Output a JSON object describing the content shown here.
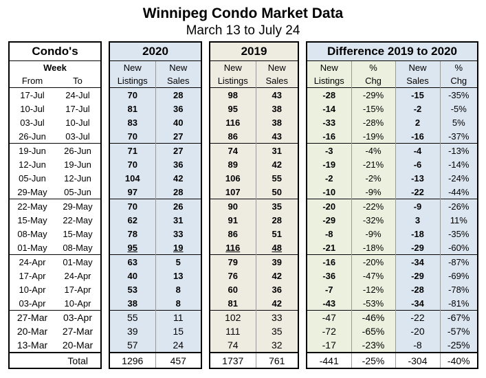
{
  "title": "Winnipeg Condo Market Data",
  "subtitle": "March 13 to July 24",
  "headers": {
    "condos": "Condo's",
    "y2020": "2020",
    "y2019": "2019",
    "diff": "Difference 2019 to 2020",
    "week": "Week",
    "from": "From",
    "to": "To",
    "new1": "New",
    "listings": "Listings",
    "new2": "New",
    "sales": "Sales",
    "pct": "%",
    "chg": "Chg"
  },
  "rows": [
    {
      "from": "17-Jul",
      "to": "24-Jul",
      "l20": "70",
      "s20": "28",
      "l19": "98",
      "s19": "43",
      "dl": "-28",
      "pl": "-29%",
      "ds": "-15",
      "ps": "-35%"
    },
    {
      "from": "10-Jul",
      "to": "17-Jul",
      "l20": "81",
      "s20": "36",
      "l19": "95",
      "s19": "38",
      "dl": "-14",
      "pl": "-15%",
      "ds": "-2",
      "ps": "-5%"
    },
    {
      "from": "03-Jul",
      "to": "10-Jul",
      "l20": "83",
      "s20": "40",
      "l19": "116",
      "s19": "38",
      "dl": "-33",
      "pl": "-28%",
      "ds": "2",
      "ps": "5%"
    },
    {
      "from": "26-Jun",
      "to": "03-Jul",
      "l20": "70",
      "s20": "27",
      "l19": "86",
      "s19": "43",
      "dl": "-16",
      "pl": "-19%",
      "ds": "-16",
      "ps": "-37%"
    },
    {
      "from": "19-Jun",
      "to": "26-Jun",
      "l20": "71",
      "s20": "27",
      "l19": "74",
      "s19": "31",
      "dl": "-3",
      "pl": "-4%",
      "ds": "-4",
      "ps": "-13%"
    },
    {
      "from": "12-Jun",
      "to": "19-Jun",
      "l20": "70",
      "s20": "36",
      "l19": "89",
      "s19": "42",
      "dl": "-19",
      "pl": "-21%",
      "ds": "-6",
      "ps": "-14%"
    },
    {
      "from": "05-Jun",
      "to": "12-Jun",
      "l20": "104",
      "s20": "42",
      "l19": "106",
      "s19": "55",
      "dl": "-2",
      "pl": "-2%",
      "ds": "-13",
      "ps": "-24%"
    },
    {
      "from": "29-May",
      "to": "05-Jun",
      "l20": "97",
      "s20": "28",
      "l19": "107",
      "s19": "50",
      "dl": "-10",
      "pl": "-9%",
      "ds": "-22",
      "ps": "-44%"
    },
    {
      "from": "22-May",
      "to": "29-May",
      "l20": "70",
      "s20": "26",
      "l19": "90",
      "s19": "35",
      "dl": "-20",
      "pl": "-22%",
      "ds": "-9",
      "ps": "-26%"
    },
    {
      "from": "15-May",
      "to": "22-May",
      "l20": "62",
      "s20": "31",
      "l19": "91",
      "s19": "28",
      "dl": "-29",
      "pl": "-32%",
      "ds": "3",
      "ps": "11%"
    },
    {
      "from": "08-May",
      "to": "15-May",
      "l20": "78",
      "s20": "33",
      "l19": "86",
      "s19": "51",
      "dl": "-8",
      "pl": "-9%",
      "ds": "-18",
      "ps": "-35%"
    },
    {
      "from": "01-May",
      "to": "08-May",
      "l20": "95",
      "s20": "19",
      "l19": "116",
      "s19": "48",
      "dl": "-21",
      "pl": "-18%",
      "ds": "-29",
      "ps": "-60%"
    },
    {
      "from": "24-Apr",
      "to": "01-May",
      "l20": "63",
      "s20": "5",
      "l19": "79",
      "s19": "39",
      "dl": "-16",
      "pl": "-20%",
      "ds": "-34",
      "ps": "-87%"
    },
    {
      "from": "17-Apr",
      "to": "24-Apr",
      "l20": "40",
      "s20": "13",
      "l19": "76",
      "s19": "42",
      "dl": "-36",
      "pl": "-47%",
      "ds": "-29",
      "ps": "-69%"
    },
    {
      "from": "10-Apr",
      "to": "17-Apr",
      "l20": "53",
      "s20": "8",
      "l19": "60",
      "s19": "36",
      "dl": "-7",
      "pl": "-12%",
      "ds": "-28",
      "ps": "-78%"
    },
    {
      "from": "03-Apr",
      "to": "10-Apr",
      "l20": "38",
      "s20": "8",
      "l19": "81",
      "s19": "42",
      "dl": "-43",
      "pl": "-53%",
      "ds": "-34",
      "ps": "-81%"
    },
    {
      "from": "27-Mar",
      "to": "03-Apr",
      "l20": "55",
      "s20": "11",
      "l19": "102",
      "s19": "33",
      "dl": "-47",
      "pl": "-46%",
      "ds": "-22",
      "ps": "-67%"
    },
    {
      "from": "20-Mar",
      "to": "27-Mar",
      "l20": "39",
      "s20": "15",
      "l19": "111",
      "s19": "35",
      "dl": "-72",
      "pl": "-65%",
      "ds": "-20",
      "ps": "-57%"
    },
    {
      "from": "13-Mar",
      "to": "20-Mar",
      "l20": "57",
      "s20": "24",
      "l19": "74",
      "s19": "32",
      "dl": "-17",
      "pl": "-23%",
      "ds": "-8",
      "ps": "-25%"
    }
  ],
  "total": {
    "label": "Total",
    "l20": "1296",
    "s20": "457",
    "l19": "1737",
    "s19": "761",
    "dl": "-441",
    "pl": "-25%",
    "ds": "-304",
    "ps": "-40%"
  }
}
